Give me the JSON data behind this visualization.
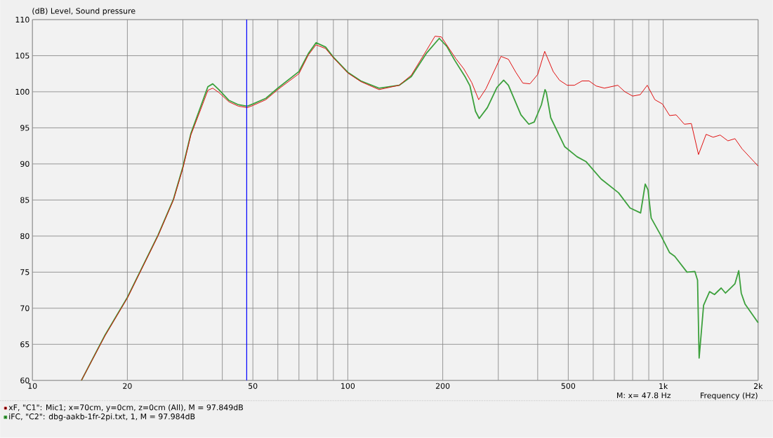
{
  "chart_data": {
    "type": "line",
    "ylabel": "(dB)  Level, Sound pressure",
    "xlabel": "Frequency  (Hz)",
    "log": "x",
    "grid": true,
    "legend": "bottom",
    "xlim": [
      10,
      2000
    ],
    "ylim": [
      60,
      110
    ],
    "xticks": [
      10,
      20,
      {
        "value": 30,
        "label": null
      },
      {
        "value": 40,
        "label": null
      },
      50,
      {
        "value": 60,
        "label": null
      },
      {
        "value": 70,
        "label": null
      },
      {
        "value": 80,
        "label": null
      },
      {
        "value": 90,
        "label": null
      },
      100,
      200,
      {
        "value": 300,
        "label": null
      },
      {
        "value": 400,
        "label": null
      },
      500,
      {
        "value": 600,
        "label": null
      },
      {
        "value": 700,
        "label": null
      },
      {
        "value": 800,
        "label": null
      },
      {
        "value": 900,
        "label": null
      },
      {
        "value": 1000,
        "label": "1k"
      },
      {
        "value": 2000,
        "label": "2k"
      }
    ],
    "yticks": [
      60,
      65,
      70,
      75,
      80,
      85,
      90,
      95,
      100,
      105,
      110
    ],
    "ref_lines": [
      {
        "axis": "x",
        "value": 47.8,
        "color": "#0000ff"
      }
    ],
    "annotations": [
      "M:  x= 47.8 Hz"
    ],
    "series": [
      {
        "name": "xF, \"C1\": Mic1; x=70cm, y=0cm, z=0cm  (All), M = 97.849dB",
        "color": "#e01010",
        "x": [
          14.3,
          17,
          20,
          25,
          28,
          30,
          31.8,
          34.2,
          36,
          37.3,
          39,
          42,
          45,
          48,
          50,
          55,
          60,
          70,
          75,
          79.3,
          85,
          90,
          100,
          110,
          125.6,
          145.5,
          159,
          178,
          189,
          198,
          220,
          233,
          247,
          260,
          274,
          306,
          323,
          341,
          359,
          378,
          400,
          421,
          448,
          469,
          496,
          523,
          553,
          582,
          613,
          651,
          718,
          756,
          800,
          846,
          890,
          941,
          995,
          1048,
          1099,
          1167,
          1228,
          1294,
          1368,
          1440,
          1516,
          1604,
          1689,
          1778,
          2000
        ],
        "values": [
          60,
          66.2,
          71.4,
          80,
          85,
          89.4,
          94,
          97.6,
          100.2,
          100.5,
          99.9,
          98.6,
          98,
          97.8,
          98.1,
          98.9,
          100.3,
          102.5,
          105.1,
          106.5,
          106,
          104.7,
          102.6,
          101.4,
          100.3,
          100.9,
          102.3,
          105.8,
          107.7,
          107.6,
          104.6,
          103.2,
          101.3,
          98.9,
          100.4,
          104.9,
          104.5,
          102.7,
          101.2,
          101.1,
          102.4,
          105.6,
          102.8,
          101.6,
          100.9,
          100.9,
          101.5,
          101.5,
          100.8,
          100.5,
          100.9,
          100,
          99.4,
          99.6,
          100.9,
          98.9,
          98.3,
          96.7,
          96.8,
          95.5,
          95.6,
          91.3,
          94.1,
          93.7,
          94,
          93.2,
          93.5,
          92.1,
          89.7
        ]
      },
      {
        "name": "iFC, \"C2\": dbg-aakb-1fr-2pi.txt, 1, M = 97.984dB",
        "color": "#3ca03c",
        "x": [
          14.3,
          17,
          20,
          25,
          28,
          30,
          31.8,
          34.2,
          36,
          37.3,
          39,
          42,
          45,
          48,
          50,
          55,
          60,
          70,
          75,
          79.3,
          85,
          90,
          100,
          110,
          125.6,
          145.5,
          159,
          178,
          195,
          206,
          218,
          236,
          244,
          254,
          261,
          277,
          297,
          312,
          323,
          354,
          375,
          390,
          411,
          422,
          426,
          440,
          487,
          533,
          570,
          636,
          722,
          785,
          848,
          877,
          895,
          916,
          983,
          1048,
          1088,
          1190,
          1260,
          1285,
          1300,
          1343,
          1403,
          1454,
          1527,
          1576,
          1646,
          1689,
          1736,
          1768,
          1817,
          2000
        ],
        "values": [
          60,
          66.3,
          71.5,
          80.1,
          85.1,
          89.6,
          94.2,
          98,
          100.7,
          101.1,
          100.3,
          98.8,
          98.2,
          98,
          98.3,
          99.1,
          100.5,
          102.8,
          105.3,
          106.8,
          106.2,
          104.8,
          102.7,
          101.5,
          100.5,
          100.9,
          102.1,
          105.4,
          107.4,
          106.3,
          104.4,
          102,
          100.8,
          97.3,
          96.3,
          97.8,
          100.6,
          101.6,
          100.9,
          96.8,
          95.5,
          95.8,
          98.2,
          100.3,
          99.9,
          96.4,
          92.4,
          91,
          90.3,
          87.9,
          86,
          83.9,
          83.2,
          87.2,
          86.4,
          82.5,
          80.1,
          77.7,
          77.2,
          75,
          75.1,
          73.9,
          63.1,
          70.4,
          72.3,
          71.9,
          72.8,
          72.1,
          72.9,
          73.4,
          75.2,
          72.1,
          70.6,
          68
        ]
      }
    ]
  }
}
